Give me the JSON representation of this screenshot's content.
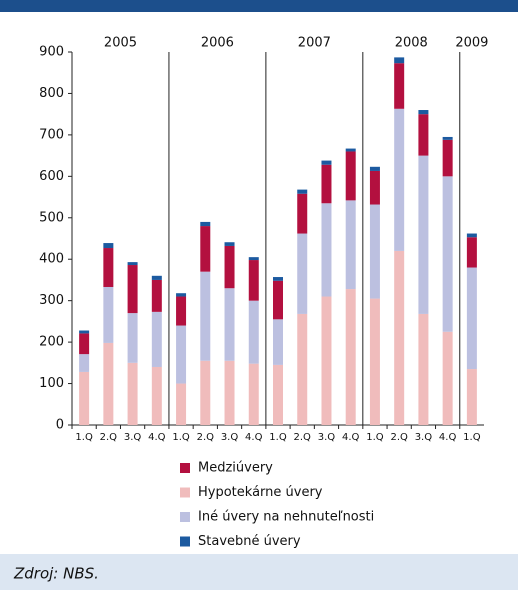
{
  "chart_data": {
    "type": "stacked_bar",
    "categories": [
      "1.Q",
      "2.Q",
      "3.Q",
      "4.Q",
      "1.Q",
      "2.Q",
      "3.Q",
      "4.Q",
      "1.Q",
      "2.Q",
      "3.Q",
      "4.Q",
      "1.Q",
      "2.Q",
      "3.Q",
      "4.Q",
      "1.Q"
    ],
    "year_groups": [
      {
        "label": "2005",
        "span": 4
      },
      {
        "label": "2006",
        "span": 4
      },
      {
        "label": "2007",
        "span": 4
      },
      {
        "label": "2008",
        "span": 4
      },
      {
        "label": "2009",
        "span": 1
      }
    ],
    "series": [
      {
        "name": "Medziúvery",
        "color": "#b3103f",
        "values": [
          50,
          94,
          116,
          77,
          70,
          110,
          102,
          98,
          93,
          96,
          93,
          118,
          81,
          110,
          100,
          88,
          73
        ]
      },
      {
        "name": "Hypotekárne úvery",
        "color": "#f0bcbc",
        "values": [
          128,
          198,
          150,
          140,
          100,
          155,
          155,
          148,
          145,
          268,
          310,
          328,
          305,
          420,
          268,
          225,
          135
        ]
      },
      {
        "name": "Iné úvery na nehnuteľnosti",
        "color": "#bcc0e0",
        "values": [
          43,
          135,
          120,
          133,
          140,
          215,
          175,
          152,
          110,
          194,
          225,
          214,
          227,
          343,
          382,
          375,
          245
        ]
      },
      {
        "name": "Stavebné úvery",
        "color": "#1c5aa0",
        "values": [
          7,
          12,
          7,
          10,
          8,
          10,
          9,
          7,
          9,
          10,
          10,
          7,
          10,
          14,
          10,
          7,
          9
        ]
      }
    ],
    "ylim": [
      0,
      900
    ],
    "yticks": [
      0,
      100,
      200,
      300,
      400,
      500,
      600,
      700,
      800,
      900
    ],
    "source": "Zdroj: NBS."
  }
}
